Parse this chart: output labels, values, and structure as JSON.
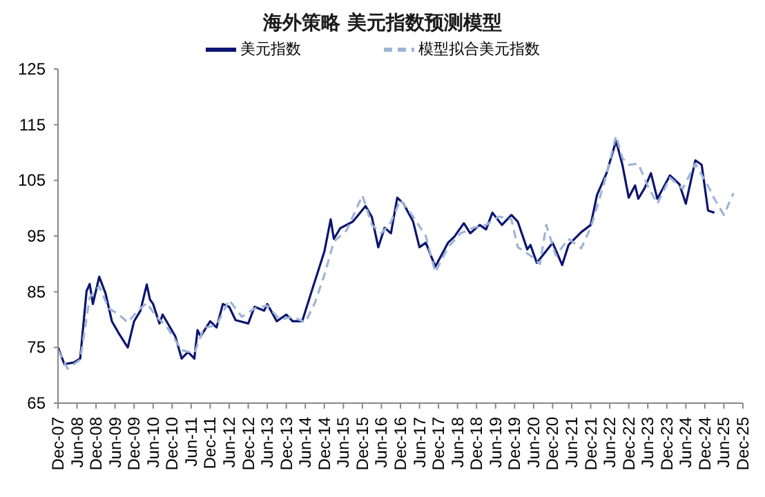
{
  "chart_data": {
    "type": "line",
    "title": "海外策略 美元指数预测模型",
    "legend": "top",
    "marker": "none",
    "ylim": [
      65,
      125
    ],
    "yticks": [
      65,
      75,
      85,
      95,
      105,
      115,
      125
    ],
    "xlim": [
      "2007-12",
      "2025-12"
    ],
    "xticks": [
      {
        "value": "2007-12",
        "label": "Dec-07"
      },
      {
        "value": "2008-06",
        "label": "Jun-08"
      },
      {
        "value": "2008-12",
        "label": "Dec-08"
      },
      {
        "value": "2009-06",
        "label": "Jun-09"
      },
      {
        "value": "2009-12",
        "label": "Dec-09"
      },
      {
        "value": "2010-06",
        "label": "Jun-10"
      },
      {
        "value": "2010-12",
        "label": "Dec-10"
      },
      {
        "value": "2011-06",
        "label": "Jun-11"
      },
      {
        "value": "2011-12",
        "label": "Dec-11"
      },
      {
        "value": "2012-06",
        "label": "Jun-12"
      },
      {
        "value": "2012-12",
        "label": "Dec-12"
      },
      {
        "value": "2013-06",
        "label": "Jun-13"
      },
      {
        "value": "2013-12",
        "label": "Dec-13"
      },
      {
        "value": "2014-06",
        "label": "Jun-14"
      },
      {
        "value": "2014-12",
        "label": "Dec-14"
      },
      {
        "value": "2015-06",
        "label": "Jun-15"
      },
      {
        "value": "2015-12",
        "label": "Dec-15"
      },
      {
        "value": "2016-06",
        "label": "Jun-16"
      },
      {
        "value": "2016-12",
        "label": "Dec-16"
      },
      {
        "value": "2017-06",
        "label": "Jun-17"
      },
      {
        "value": "2017-12",
        "label": "Dec-17"
      },
      {
        "value": "2018-06",
        "label": "Jun-18"
      },
      {
        "value": "2018-12",
        "label": "Dec-18"
      },
      {
        "value": "2019-06",
        "label": "Jun-19"
      },
      {
        "value": "2019-12",
        "label": "Dec-19"
      },
      {
        "value": "2020-06",
        "label": "Jun-20"
      },
      {
        "value": "2020-12",
        "label": "Dec-20"
      },
      {
        "value": "2021-06",
        "label": "Jun-21"
      },
      {
        "value": "2021-12",
        "label": "Dec-21"
      },
      {
        "value": "2022-06",
        "label": "Jun-22"
      },
      {
        "value": "2022-12",
        "label": "Dec-22"
      },
      {
        "value": "2023-06",
        "label": "Jun-23"
      },
      {
        "value": "2023-12",
        "label": "Dec-23"
      },
      {
        "value": "2024-06",
        "label": "Jun-24"
      },
      {
        "value": "2024-12",
        "label": "Dec-24"
      },
      {
        "value": "2025-06",
        "label": "Jun-25"
      },
      {
        "value": "2025-12",
        "label": "Dec-25"
      }
    ],
    "series": [
      {
        "name": "美元指数",
        "color": "#0b1470",
        "line_style": "solid",
        "x": [
          "2007-12",
          "2008-02",
          "2008-05",
          "2008-07",
          "2008-09",
          "2008-10",
          "2008-11",
          "2009-01",
          "2009-03",
          "2009-05",
          "2009-07",
          "2009-10",
          "2009-12",
          "2010-02",
          "2010-04",
          "2010-05",
          "2010-06",
          "2010-08",
          "2010-09",
          "2011-01",
          "2011-03",
          "2011-05",
          "2011-07",
          "2011-08",
          "2011-09",
          "2011-12",
          "2012-02",
          "2012-04",
          "2012-06",
          "2012-08",
          "2012-12",
          "2013-02",
          "2013-05",
          "2013-06",
          "2013-09",
          "2013-12",
          "2014-02",
          "2014-05",
          "2014-08",
          "2014-12",
          "2015-02",
          "2015-03",
          "2015-05",
          "2015-09",
          "2016-01",
          "2016-03",
          "2016-05",
          "2016-07",
          "2016-09",
          "2016-11",
          "2017-01",
          "2017-04",
          "2017-06",
          "2017-08",
          "2017-11",
          "2018-03",
          "2018-05",
          "2018-08",
          "2018-10",
          "2019-01",
          "2019-03",
          "2019-05",
          "2019-08",
          "2019-11",
          "2020-01",
          "2020-04",
          "2020-05",
          "2020-07",
          "2020-12",
          "2021-03",
          "2021-05",
          "2021-09",
          "2021-12",
          "2022-02",
          "2022-05",
          "2022-08",
          "2022-10",
          "2022-12",
          "2023-02",
          "2023-03",
          "2023-05",
          "2023-07",
          "2023-09",
          "2024-01",
          "2024-04",
          "2024-06",
          "2024-09",
          "2024-11",
          "2025-01",
          "2025-03"
        ],
        "values": [
          75.0,
          72.0,
          72.3,
          73.0,
          85.1,
          86.4,
          82.8,
          87.7,
          84.7,
          79.7,
          77.7,
          75.0,
          79.7,
          81.6,
          86.3,
          83.6,
          82.8,
          79.3,
          80.9,
          77.0,
          73.0,
          74.2,
          73.0,
          78.1,
          77.0,
          79.7,
          78.6,
          82.8,
          82.3,
          79.9,
          79.3,
          82.3,
          81.6,
          82.8,
          79.7,
          80.9,
          79.7,
          79.7,
          85.1,
          92.2,
          98.0,
          94.5,
          96.4,
          97.6,
          100.4,
          98.4,
          93.0,
          96.5,
          95.5,
          101.9,
          100.8,
          97.6,
          93.0,
          93.8,
          89.5,
          93.8,
          94.9,
          97.3,
          95.5,
          97.0,
          96.2,
          99.2,
          97.0,
          98.8,
          97.6,
          92.6,
          93.4,
          90.2,
          93.8,
          89.8,
          93.4,
          95.7,
          97.0,
          102.4,
          106.3,
          112.1,
          107.8,
          101.9,
          104.1,
          101.7,
          103.6,
          106.3,
          101.7,
          105.9,
          104.3,
          100.8,
          108.6,
          107.8,
          99.6,
          99.2
        ]
      },
      {
        "name": "模型拟合美元指数",
        "color": "#9db4d6",
        "line_style": "dashed",
        "x": [
          "2007-12",
          "2008-03",
          "2008-07",
          "2008-10",
          "2009-01",
          "2009-04",
          "2009-07",
          "2009-10",
          "2010-01",
          "2010-04",
          "2010-07",
          "2010-10",
          "2011-03",
          "2011-07",
          "2011-10",
          "2012-02",
          "2012-06",
          "2012-10",
          "2013-02",
          "2013-06",
          "2013-10",
          "2014-02",
          "2014-06",
          "2014-09",
          "2014-12",
          "2015-03",
          "2015-07",
          "2015-12",
          "2016-03",
          "2016-06",
          "2016-09",
          "2016-12",
          "2017-04",
          "2017-08",
          "2017-11",
          "2018-03",
          "2018-07",
          "2018-11",
          "2019-03",
          "2019-07",
          "2019-11",
          "2020-01",
          "2020-05",
          "2020-08",
          "2020-10",
          "2021-01",
          "2021-05",
          "2021-09",
          "2021-12",
          "2022-04",
          "2022-08",
          "2022-10",
          "2022-12",
          "2023-03",
          "2023-06",
          "2023-09",
          "2024-01",
          "2024-05",
          "2024-09",
          "2025-01",
          "2025-03",
          "2025-06",
          "2025-09"
        ],
        "values": [
          74.5,
          71.2,
          72.8,
          84.0,
          86.0,
          82.0,
          81.0,
          79.5,
          81.5,
          83.0,
          80.5,
          79.0,
          74.5,
          74.0,
          78.5,
          79.0,
          83.5,
          80.5,
          82.0,
          82.5,
          80.0,
          80.5,
          79.5,
          83.0,
          88.0,
          94.0,
          96.0,
          102.3,
          97.0,
          95.5,
          97.5,
          101.5,
          98.5,
          95.0,
          88.5,
          93.0,
          95.5,
          96.5,
          97.0,
          98.5,
          98.0,
          93.0,
          91.5,
          90.0,
          97.0,
          91.5,
          94.5,
          92.8,
          96.5,
          104.0,
          113.0,
          109.0,
          107.8,
          108.0,
          104.0,
          100.8,
          105.5,
          103.5,
          108.0,
          104.0,
          101.7,
          98.8,
          102.7
        ]
      }
    ]
  }
}
